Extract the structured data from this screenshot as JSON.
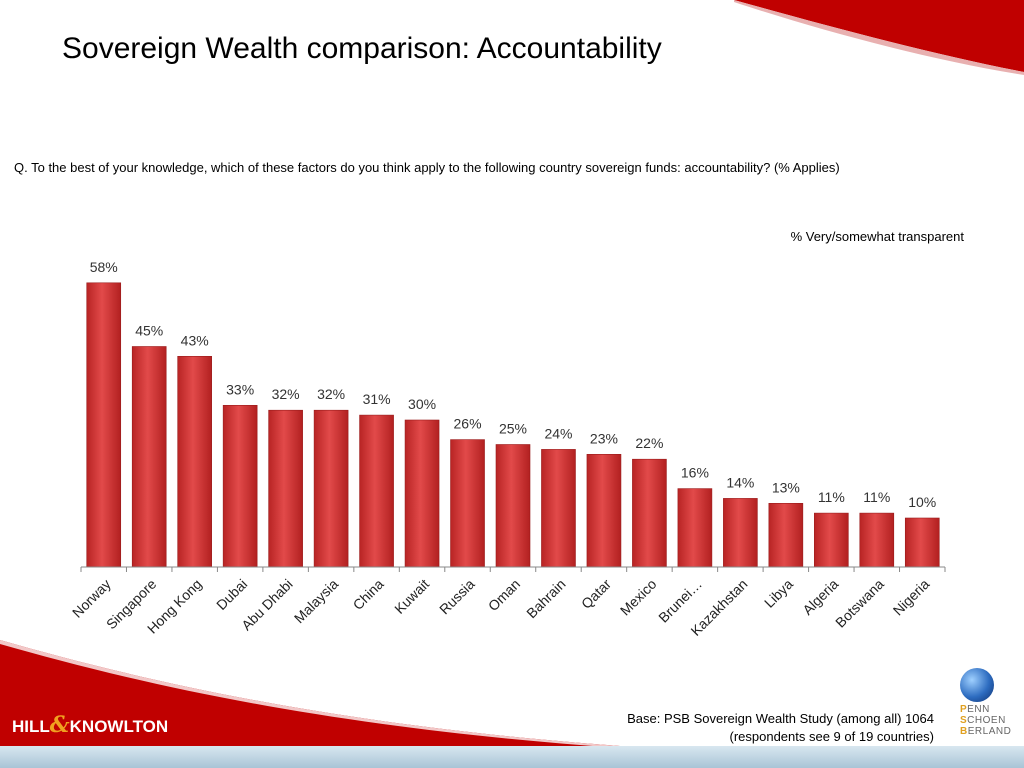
{
  "title": "Sovereign Wealth comparison: Accountability",
  "question": "Q. To the best of your knowledge, which of these factors do you think apply to the following country sovereign funds: accountability? (% Applies)",
  "series_label": "% Very/somewhat transparent",
  "base_note": {
    "line1": "Base: PSB Sovereign Wealth Study (among all) 1064",
    "line2": "(respondents see 9 of 19 countries)"
  },
  "logos": {
    "left_part1": "HILL",
    "left_amp": "&",
    "left_part2": "KNOWLTON",
    "right_line1_initial": "P",
    "right_line1_rest": "ENN",
    "right_line2_initial": "S",
    "right_line2_rest": "CHOEN",
    "right_line3_initial": "B",
    "right_line3_rest": "ERLAND"
  },
  "colors": {
    "bar": "#d23b3b",
    "accent_red": "#c00000",
    "strip": "#a9c4d6"
  },
  "chart_data": {
    "type": "bar",
    "title": "",
    "xlabel": "",
    "ylabel": "",
    "ylim": [
      0,
      62
    ],
    "grid": false,
    "categories": [
      "Norway",
      "Singapore",
      "Hong Kong",
      "Dubai",
      "Abu Dhabi",
      "Malaysia",
      "China",
      "Kuwait",
      "Russia",
      "Oman",
      "Bahrain",
      "Qatar",
      "Mexico",
      "Brunei…",
      "Kazakhstan",
      "Libya",
      "Algeria",
      "Botswana",
      "Nigeria"
    ],
    "values": [
      58,
      45,
      43,
      33,
      32,
      32,
      31,
      30,
      26,
      25,
      24,
      23,
      22,
      16,
      14,
      13,
      11,
      11,
      10
    ],
    "value_labels": [
      "58%",
      "45%",
      "43%",
      "33%",
      "32%",
      "32%",
      "31%",
      "30%",
      "26%",
      "25%",
      "24%",
      "23%",
      "22%",
      "16%",
      "14%",
      "13%",
      "11%",
      "11%",
      "10%"
    ]
  }
}
